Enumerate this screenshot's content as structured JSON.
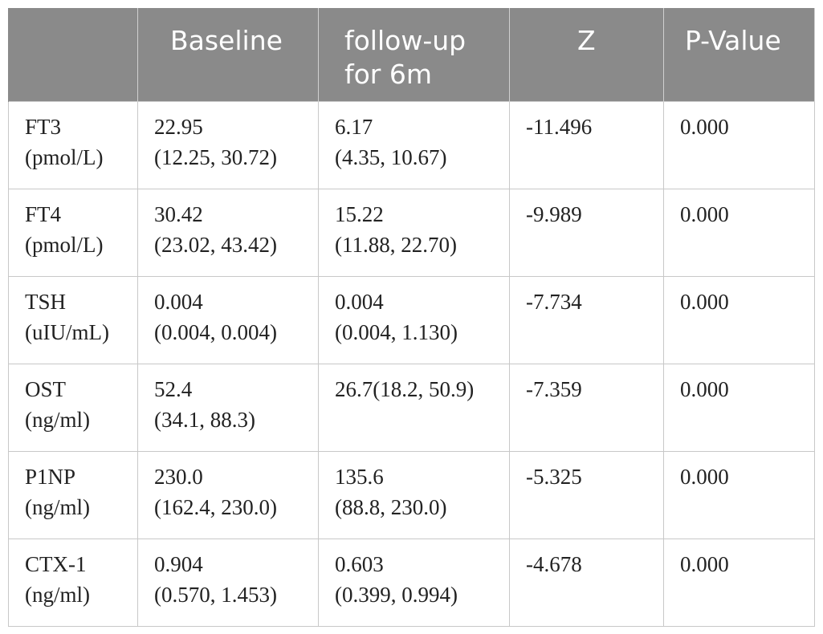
{
  "table": {
    "headers": [
      "",
      "Baseline",
      "follow-up for 6m",
      "Z",
      "P-Value"
    ],
    "header_lines": [
      [
        ""
      ],
      [
        "Baseline"
      ],
      [
        "follow-up",
        "for 6m"
      ],
      [
        "Z"
      ],
      [
        "P-Value"
      ]
    ],
    "rows": [
      {
        "marker": [
          "FT3",
          "(pmol/L)"
        ],
        "baseline": [
          "22.95",
          "(12.25, 30.72)"
        ],
        "followup": [
          "6.17",
          "(4.35, 10.67)"
        ],
        "z": "-11.496",
        "p": "0.000"
      },
      {
        "marker": [
          "FT4",
          "(pmol/L)"
        ],
        "baseline": [
          "30.42",
          "(23.02, 43.42)"
        ],
        "followup": [
          "15.22",
          "(11.88, 22.70)"
        ],
        "z": "-9.989",
        "p": "0.000"
      },
      {
        "marker": [
          "TSH",
          "(uIU/mL)"
        ],
        "baseline": [
          "0.004",
          "(0.004, 0.004)"
        ],
        "followup": [
          "0.004",
          "(0.004, 1.130)"
        ],
        "z": "-7.734",
        "p": "0.000"
      },
      {
        "marker": [
          "OST",
          "(ng/ml)"
        ],
        "baseline": [
          "52.4",
          "(34.1, 88.3)"
        ],
        "followup": [
          "26.7(18.2, 50.9)"
        ],
        "z": "-7.359",
        "p": "0.000"
      },
      {
        "marker": [
          "P1NP",
          "(ng/ml)"
        ],
        "baseline": [
          "230.0",
          "(162.4, 230.0)"
        ],
        "followup": [
          "135.6",
          "(88.8, 230.0)"
        ],
        "z": "-5.325",
        "p": "0.000"
      },
      {
        "marker": [
          "CTX-1",
          "(ng/ml)"
        ],
        "baseline": [
          "0.904",
          "(0.570, 1.453)"
        ],
        "followup": [
          "0.603",
          "(0.399, 0.994)"
        ],
        "z": "-4.678",
        "p": "0.000"
      }
    ]
  },
  "colors": {
    "header_bg": "#8a8a8a",
    "header_text": "#ffffff",
    "border": "#c8c8c8"
  }
}
